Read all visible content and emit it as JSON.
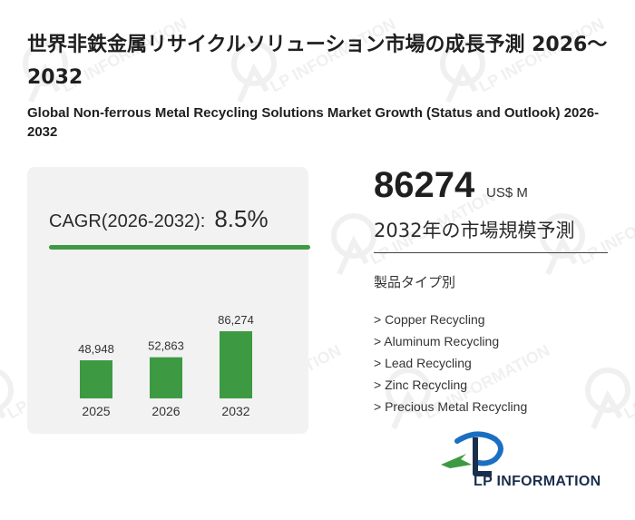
{
  "header": {
    "title_ja": "世界非鉄金属リサイクルソリューション市場の成長予測 2026～2032",
    "title_en": "Global Non-ferrous Metal Recycling Solutions Market Growth (Status and Outlook) 2026-2032"
  },
  "cagr": {
    "label": "CAGR(2026-2032):",
    "value": "8.5%"
  },
  "chart_data": {
    "type": "bar",
    "categories": [
      "2025",
      "2026",
      "2032"
    ],
    "values": [
      48948,
      52863,
      86274
    ],
    "value_labels": [
      "48,948",
      "52,863",
      "86,274"
    ],
    "color": "#3d9a42"
  },
  "highlight": {
    "value": "86274",
    "unit": "US$ M",
    "caption": "2032年の市場規模予測"
  },
  "segments": {
    "heading": "製品タイプ別",
    "items": [
      "> Copper Recycling",
      "> Aluminum Recycling",
      "> Lead Recycling",
      "> Zinc Recycling",
      "> Precious Metal Recycling"
    ]
  },
  "logo": {
    "text": "LP INFORMATION"
  },
  "watermark": {
    "text": "LP INFORMATION"
  },
  "colors": {
    "accent_green": "#3d9a42",
    "brand_navy": "#1a2f4d",
    "brand_blue": "#1b6fc2",
    "card_bg": "#f2f2f2"
  }
}
